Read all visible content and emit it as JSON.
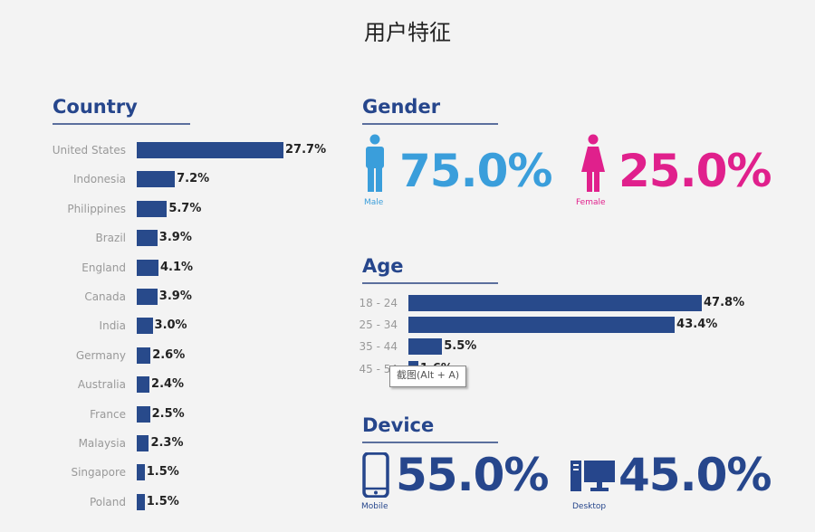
{
  "page_title": "用户特征",
  "colors": {
    "heading": "#26468c",
    "bar": "#284a8b",
    "male": "#3a9edb",
    "female": "#e0208c",
    "device": "#26468c"
  },
  "country": {
    "heading": "Country"
  },
  "gender": {
    "heading": "Gender",
    "male": {
      "value": "75.0%",
      "label": "Male",
      "icon": "male-person-icon"
    },
    "female": {
      "value": "25.0%",
      "label": "Female",
      "icon": "female-person-icon"
    }
  },
  "age": {
    "heading": "Age"
  },
  "device": {
    "heading": "Device",
    "mobile": {
      "value": "55.0%",
      "label": "Mobile",
      "icon": "mobile-phone-icon"
    },
    "desktop": {
      "value": "45.0%",
      "label": "Desktop",
      "icon": "desktop-computer-icon"
    }
  },
  "tooltip": {
    "text": "截图(Alt + A)"
  },
  "chart_data": [
    {
      "type": "bar",
      "orientation": "horizontal",
      "title": "Country",
      "categories": [
        "United States",
        "Indonesia",
        "Philippines",
        "Brazil",
        "England",
        "Canada",
        "India",
        "Germany",
        "Australia",
        "France",
        "Malaysia",
        "Singapore",
        "Poland"
      ],
      "values": [
        27.7,
        7.2,
        5.7,
        3.9,
        4.1,
        3.9,
        3.0,
        2.6,
        2.4,
        2.5,
        2.3,
        1.5,
        1.5
      ],
      "value_labels": [
        "27.7%",
        "7.2%",
        "5.7%",
        "3.9%",
        "4.1%",
        "3.9%",
        "3.0%",
        "2.6%",
        "2.4%",
        "2.5%",
        "2.3%",
        "1.5%",
        "1.5%"
      ],
      "xlim": [
        0,
        27.7
      ]
    },
    {
      "type": "bar",
      "orientation": "horizontal",
      "title": "Age",
      "categories": [
        "18 - 24",
        "25 - 34",
        "35 - 44",
        "45 - 54"
      ],
      "values": [
        47.8,
        43.4,
        5.5,
        1.6
      ],
      "value_labels": [
        "47.8%",
        "43.4%",
        "5.5%",
        "1.6%"
      ],
      "xlim": [
        0,
        47.8
      ]
    }
  ]
}
